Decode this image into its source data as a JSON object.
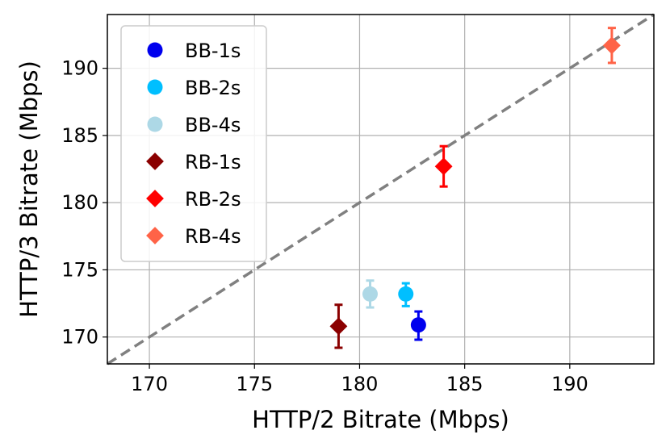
{
  "chart_data": {
    "type": "scatter",
    "xlabel": "HTTP/2 Bitrate (Mbps)",
    "ylabel": "HTTP/3 Bitrate (Mbps)",
    "xlim": [
      168,
      194
    ],
    "ylim": [
      168,
      194
    ],
    "xticks": [
      170,
      175,
      180,
      185,
      190
    ],
    "yticks": [
      170,
      175,
      180,
      185,
      190
    ],
    "grid": true,
    "legend_position": "top-left",
    "reference_line": {
      "style": "dashed",
      "color": "#808080",
      "from": [
        168,
        168
      ],
      "to": [
        194,
        194
      ]
    },
    "series": [
      {
        "name": "BB-1s",
        "marker": "circle",
        "color": "#0000ee",
        "x": 182.8,
        "y": 170.9,
        "yerr": [
          1.1,
          1.0
        ]
      },
      {
        "name": "BB-2s",
        "marker": "circle",
        "color": "#00bfff",
        "x": 182.2,
        "y": 173.2,
        "yerr": [
          0.9,
          0.8
        ]
      },
      {
        "name": "BB-4s",
        "marker": "circle",
        "color": "#add8e6",
        "x": 180.5,
        "y": 173.2,
        "yerr": [
          1.0,
          1.0
        ]
      },
      {
        "name": "RB-1s",
        "marker": "diamond",
        "color": "#8b0000",
        "x": 179.0,
        "y": 170.8,
        "yerr": [
          1.6,
          1.6
        ]
      },
      {
        "name": "RB-2s",
        "marker": "diamond",
        "color": "#ff0000",
        "x": 184.0,
        "y": 182.7,
        "yerr": [
          1.5,
          1.5
        ]
      },
      {
        "name": "RB-4s",
        "marker": "diamond",
        "color": "#ff6347",
        "x": 192.0,
        "y": 191.7,
        "yerr": [
          1.3,
          1.3
        ]
      }
    ]
  }
}
